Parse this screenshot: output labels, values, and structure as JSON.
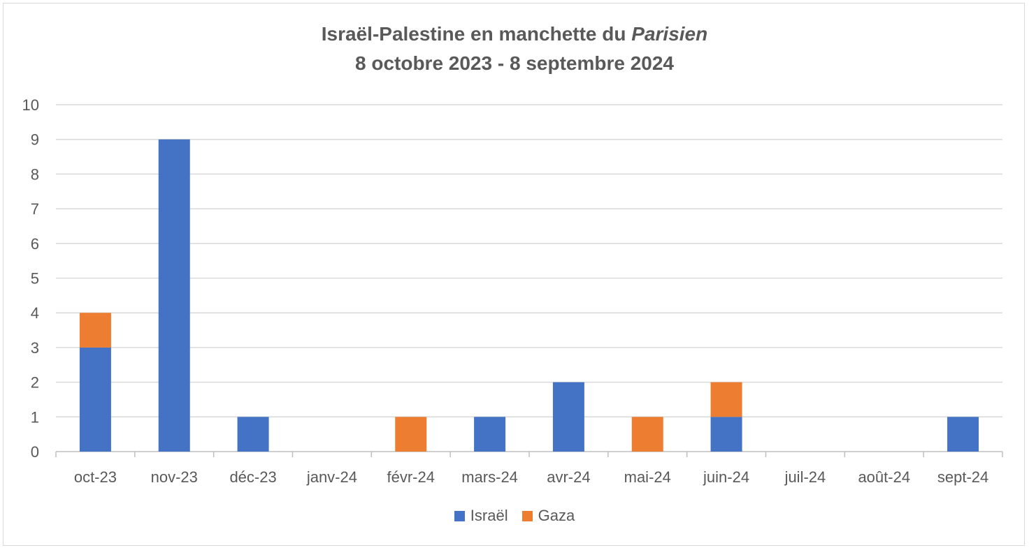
{
  "chart_data": {
    "type": "bar",
    "stacked": true,
    "title_line1_prefix": "Israël-Palestine en manchette du ",
    "title_line1_italic": "Parisien",
    "title_line2": "8 octobre 2023 - 8 septembre 2024",
    "categories": [
      "oct-23",
      "nov-23",
      "déc-23",
      "janv-24",
      "févr-24",
      "mars-24",
      "avr-24",
      "mai-24",
      "juin-24",
      "juil-24",
      "août-24",
      "sept-24"
    ],
    "series": [
      {
        "name": "Israël",
        "color": "#4472c4",
        "values": [
          3,
          9,
          1,
          0,
          0,
          1,
          2,
          0,
          1,
          0,
          0,
          1
        ]
      },
      {
        "name": "Gaza",
        "color": "#ed7d31",
        "values": [
          1,
          0,
          0,
          0,
          1,
          0,
          0,
          1,
          1,
          0,
          0,
          0
        ]
      }
    ],
    "ylim": [
      0,
      10
    ],
    "yticks": [
      "0",
      "1",
      "2",
      "3",
      "4",
      "5",
      "6",
      "7",
      "8",
      "9",
      "10"
    ],
    "grid": true,
    "legend_position": "bottom"
  }
}
